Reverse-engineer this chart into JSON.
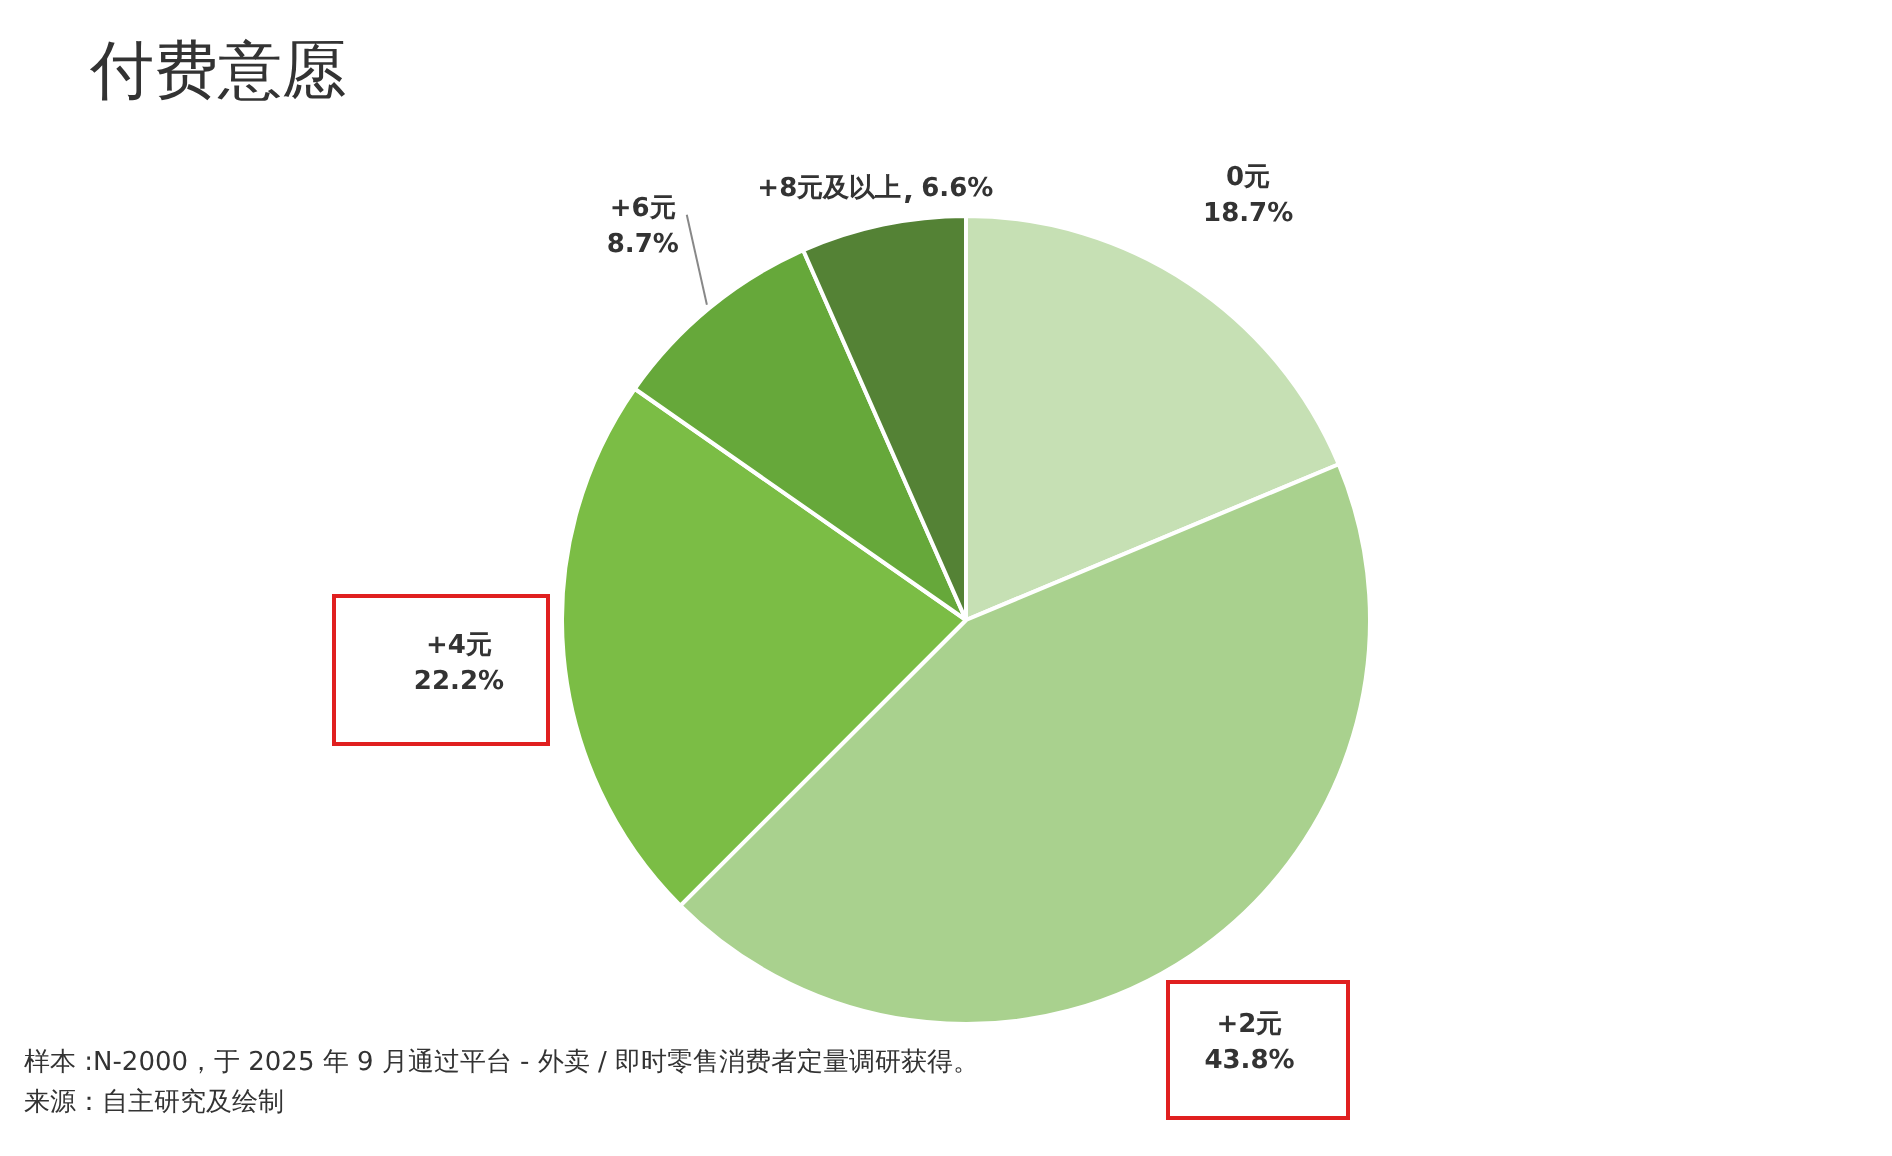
{
  "chart_data": {
    "type": "pie",
    "title": "付费意愿",
    "categories": [
      "0元",
      "+2元",
      "+4元",
      "+6元",
      "+8元及以上"
    ],
    "value_labels": [
      "18.7%",
      "43.8%",
      "22.2%",
      "8.7%",
      "6.6%"
    ],
    "values": [
      18.7,
      43.8,
      22.2,
      8.7,
      6.6
    ],
    "colors": [
      "#c6e0b4",
      "#a9d18e",
      "#7bbd45",
      "#66a83a",
      "#548235"
    ],
    "data_labels": true,
    "legend": false,
    "annotations": [
      "样本 :N-2000，于 2025 年 9 月通过平台 - 外卖 / 即时零售消费者定量调研获得。",
      "来源：自主研究及绘制"
    ]
  }
}
